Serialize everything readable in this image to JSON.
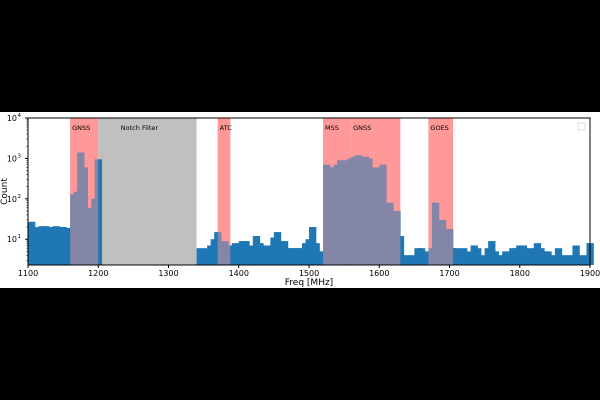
{
  "chart_data": {
    "type": "bar",
    "title": "",
    "xlabel": "Freq [MHz]",
    "ylabel": "Count",
    "xlim": [
      1100,
      1900
    ],
    "ylim": [
      2.3,
      10000
    ],
    "yscale": "log",
    "grid": false,
    "legend": "top-right",
    "x_ticks": [
      "1100",
      "1200",
      "1300",
      "1400",
      "1500",
      "1600",
      "1700",
      "1800",
      "1900"
    ],
    "y_ticks": [
      {
        "value": 10,
        "label": "10",
        "exp": "1"
      },
      {
        "value": 100,
        "label": "10",
        "exp": "2"
      },
      {
        "value": 1000,
        "label": "10",
        "exp": "3"
      },
      {
        "value": 10000,
        "label": "10",
        "exp": "4"
      }
    ],
    "bar_color": "#1f77b4",
    "band_color": "#ff9999",
    "notch_color": "#c0c0c0",
    "bin_width": 10,
    "bins": [
      [
        1100,
        27
      ],
      [
        1105,
        15
      ],
      [
        1110,
        20
      ],
      [
        1115,
        21
      ],
      [
        1120,
        21
      ],
      [
        1125,
        20
      ],
      [
        1130,
        20
      ],
      [
        1135,
        21
      ],
      [
        1140,
        20
      ],
      [
        1145,
        20
      ],
      [
        1150,
        19
      ],
      [
        1155,
        14
      ],
      [
        1160,
        130
      ],
      [
        1165,
        150
      ],
      [
        1170,
        1400
      ],
      [
        1175,
        600
      ],
      [
        1180,
        60
      ],
      [
        1185,
        12
      ],
      [
        1190,
        100
      ],
      [
        1195,
        950
      ],
      [
        1340,
        6
      ],
      [
        1345,
        5
      ],
      [
        1350,
        6
      ],
      [
        1355,
        7
      ],
      [
        1360,
        10
      ],
      [
        1365,
        15
      ],
      [
        1370,
        4
      ],
      [
        1375,
        9
      ],
      [
        1380,
        7
      ],
      [
        1385,
        4
      ],
      [
        1390,
        8
      ],
      [
        1395,
        7
      ],
      [
        1400,
        9
      ],
      [
        1405,
        9
      ],
      [
        1410,
        6
      ],
      [
        1415,
        7
      ],
      [
        1420,
        12
      ],
      [
        1425,
        8
      ],
      [
        1430,
        6
      ],
      [
        1435,
        7
      ],
      [
        1440,
        5
      ],
      [
        1445,
        11
      ],
      [
        1450,
        15
      ],
      [
        1455,
        8
      ],
      [
        1460,
        9
      ],
      [
        1465,
        6
      ],
      [
        1470,
        6
      ],
      [
        1475,
        6
      ],
      [
        1480,
        6
      ],
      [
        1485,
        6
      ],
      [
        1490,
        8
      ],
      [
        1495,
        10
      ],
      [
        1500,
        20
      ],
      [
        1505,
        8
      ],
      [
        1510,
        5
      ],
      [
        1515,
        5
      ],
      [
        1520,
        700
      ],
      [
        1525,
        500
      ],
      [
        1530,
        600
      ],
      [
        1535,
        700
      ],
      [
        1540,
        900
      ],
      [
        1545,
        800
      ],
      [
        1550,
        900
      ],
      [
        1555,
        1000
      ],
      [
        1560,
        1100
      ],
      [
        1565,
        1200
      ],
      [
        1570,
        800
      ],
      [
        1575,
        1100
      ],
      [
        1580,
        1000
      ],
      [
        1585,
        10
      ],
      [
        1590,
        600
      ],
      [
        1595,
        60
      ],
      [
        1600,
        700
      ],
      [
        1605,
        40
      ],
      [
        1610,
        80
      ],
      [
        1615,
        30
      ],
      [
        1620,
        50
      ],
      [
        1625,
        12
      ],
      [
        1630,
        4
      ],
      [
        1635,
        4
      ],
      [
        1640,
        4
      ],
      [
        1645,
        4
      ],
      [
        1650,
        6
      ],
      [
        1655,
        6
      ],
      [
        1660,
        4
      ],
      [
        1665,
        5
      ],
      [
        1670,
        6
      ],
      [
        1675,
        80
      ],
      [
        1680,
        6
      ],
      [
        1685,
        30
      ],
      [
        1690,
        6
      ],
      [
        1695,
        18
      ],
      [
        1700,
        6
      ],
      [
        1705,
        6
      ],
      [
        1715,
        6
      ],
      [
        1720,
        4
      ],
      [
        1725,
        5
      ],
      [
        1730,
        7
      ],
      [
        1735,
        6
      ],
      [
        1740,
        4
      ],
      [
        1745,
        4
      ],
      [
        1750,
        6
      ],
      [
        1755,
        9
      ],
      [
        1760,
        5
      ],
      [
        1765,
        4
      ],
      [
        1770,
        4
      ],
      [
        1775,
        5
      ],
      [
        1780,
        5
      ],
      [
        1785,
        6
      ],
      [
        1790,
        6
      ],
      [
        1795,
        7
      ],
      [
        1800,
        7
      ],
      [
        1805,
        5
      ],
      [
        1810,
        6
      ],
      [
        1815,
        5
      ],
      [
        1820,
        8
      ],
      [
        1825,
        6
      ],
      [
        1830,
        5
      ],
      [
        1835,
        5
      ],
      [
        1840,
        4
      ],
      [
        1845,
        4
      ],
      [
        1850,
        6
      ],
      [
        1855,
        4
      ],
      [
        1860,
        4
      ],
      [
        1865,
        4
      ],
      [
        1870,
        4
      ],
      [
        1875,
        7
      ],
      [
        1880,
        4
      ],
      [
        1885,
        4
      ],
      [
        1890,
        4
      ],
      [
        1895,
        8
      ]
    ],
    "bands": [
      {
        "label": "GNSS",
        "start": 1160,
        "end": 1200,
        "kind": "band"
      },
      {
        "label": "Notch Filter",
        "start": 1200,
        "end": 1340,
        "kind": "notch"
      },
      {
        "label": "ATC",
        "start": 1370,
        "end": 1388,
        "kind": "band"
      },
      {
        "label": "MSS",
        "start": 1520,
        "end": 1560,
        "kind": "band"
      },
      {
        "label": "GNSS",
        "start": 1560,
        "end": 1630,
        "kind": "band"
      },
      {
        "label": "GOES",
        "start": 1670,
        "end": 1705,
        "kind": "band"
      }
    ]
  }
}
